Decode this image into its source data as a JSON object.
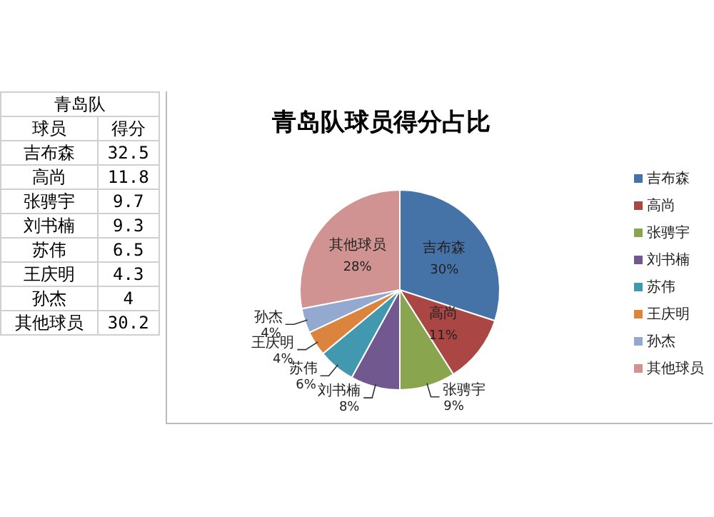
{
  "chart_data": [
    {
      "type": "other",
      "title": "青岛队",
      "annotations": [
        "球员",
        "得分"
      ],
      "categories": [
        "吉布森",
        "高尚",
        "张骋宇",
        "刘书楠",
        "苏伟",
        "王庆明",
        "孙杰",
        "其他球员"
      ],
      "values": [
        32.5,
        11.8,
        9.7,
        9.3,
        6.5,
        4.3,
        4,
        30.2
      ],
      "data_labels": true
    },
    {
      "type": "pie",
      "title": "青岛队球员得分占比",
      "categories": [
        "吉布森",
        "高尚",
        "张骋宇",
        "刘书楠",
        "苏伟",
        "王庆明",
        "孙杰",
        "其他球员"
      ],
      "values": [
        30,
        11,
        9,
        8,
        6,
        4,
        4,
        28
      ],
      "colors": [
        "#4572a7",
        "#aa4643",
        "#89a54e",
        "#71588f",
        "#4198af",
        "#db843d",
        "#93a9cf",
        "#d19392"
      ],
      "value_labels": [
        "30%",
        "11%",
        "9%",
        "8%",
        "6%",
        "4%",
        "4%",
        "28%"
      ],
      "legend": "right"
    }
  ]
}
